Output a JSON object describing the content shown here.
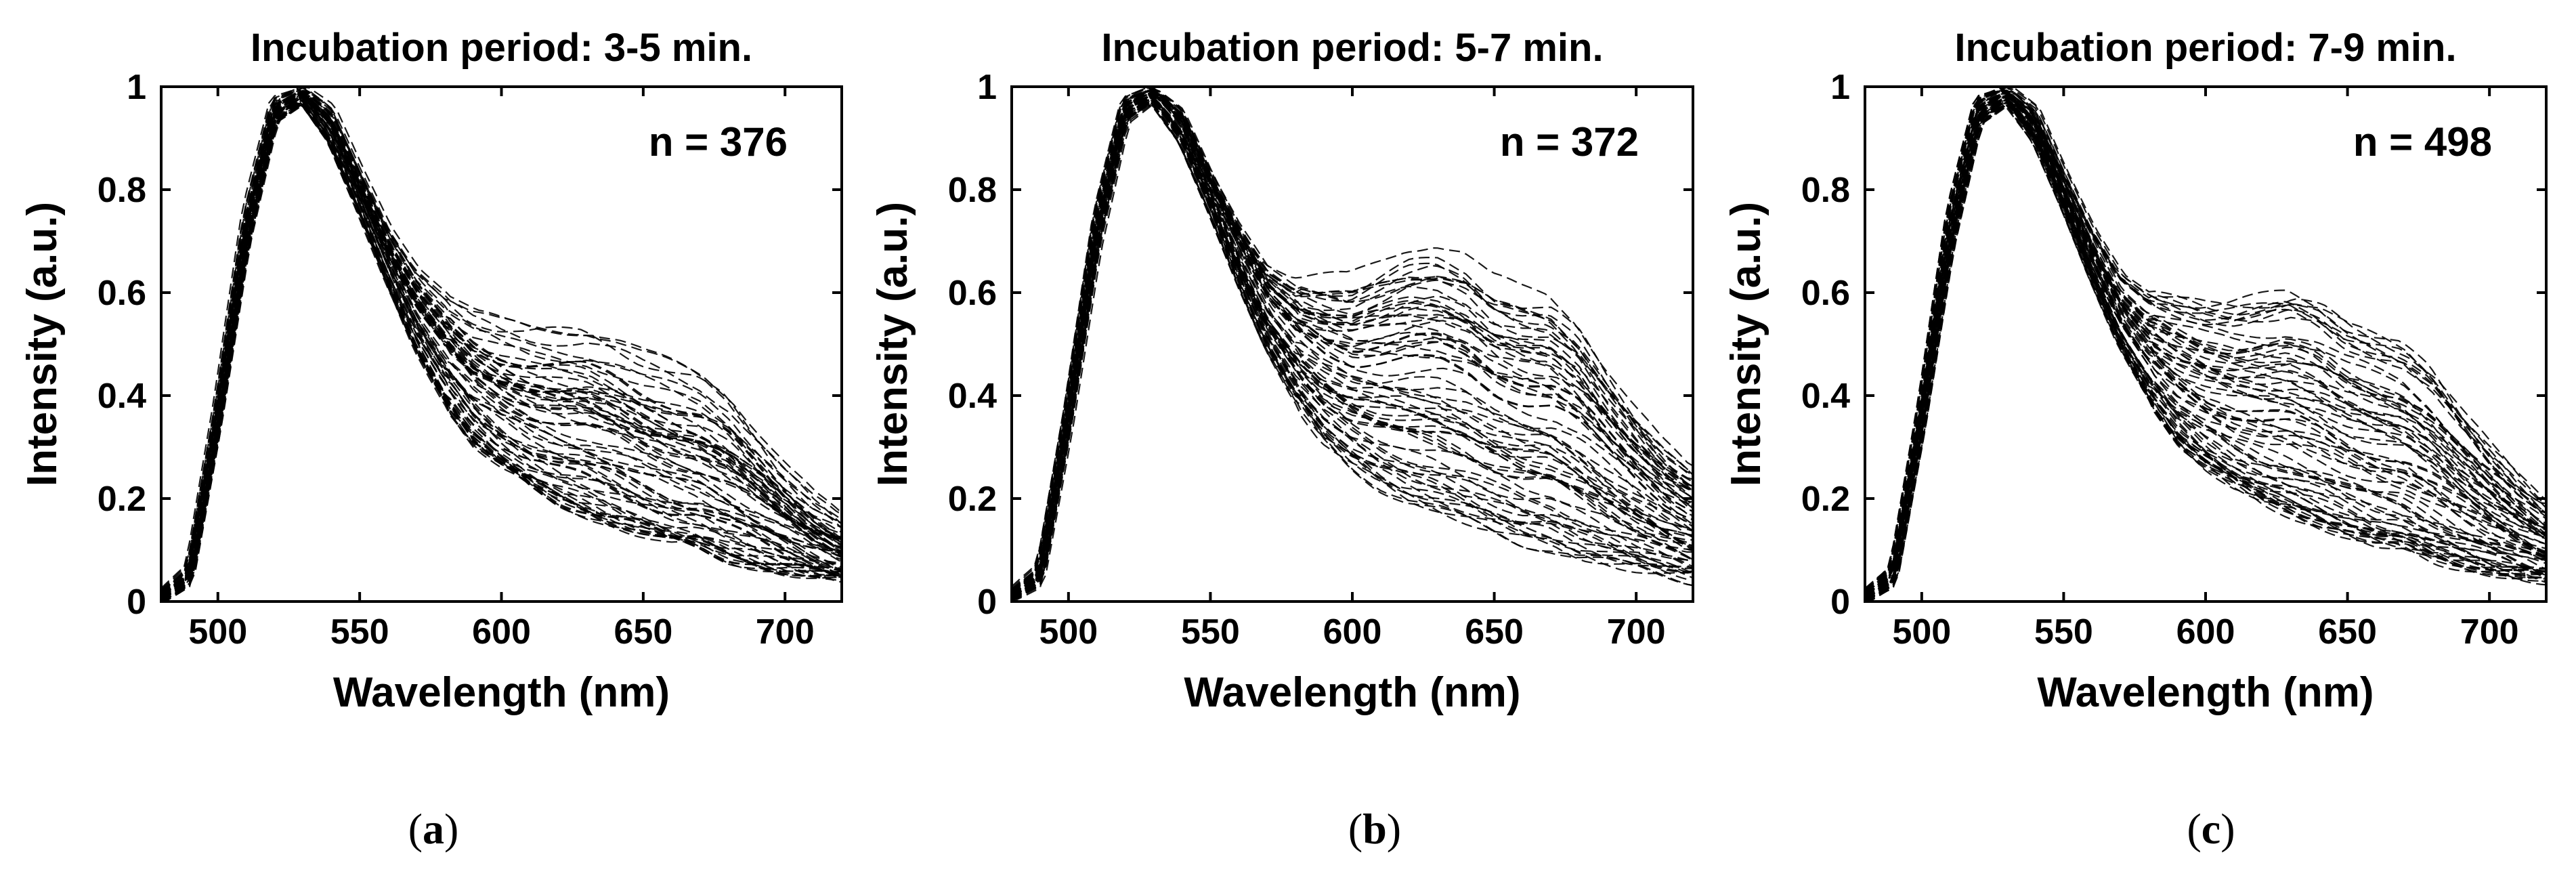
{
  "figure": {
    "panels": [
      {
        "title": "Incubation period: 3-5 min.",
        "count_label": "n = 376",
        "sub_open": "(",
        "sub_letter": "a",
        "sub_close": ")"
      },
      {
        "title": "Incubation period: 5-7 min.",
        "count_label": "n = 372",
        "sub_open": "(",
        "sub_letter": "b",
        "sub_close": ")"
      },
      {
        "title": "Incubation period: 7-9 min.",
        "count_label": "n = 498",
        "sub_open": "(",
        "sub_letter": "c",
        "sub_close": ")"
      }
    ]
  },
  "chart_data": [
    {
      "type": "line",
      "title": "Incubation period: 3-5 min.",
      "annotation": "n = 376",
      "xlabel": "Wavelength (nm)",
      "ylabel": "Intensity (a.u.)",
      "xlim": [
        480,
        720
      ],
      "ylim": [
        0,
        1
      ],
      "xticks": [
        500,
        550,
        600,
        650,
        700
      ],
      "yticks": [
        0,
        0.2,
        0.4,
        0.6,
        0.8,
        1
      ],
      "ytick_labels": [
        "0",
        "0.2",
        "0.4",
        "0.6",
        "0.8",
        "1"
      ],
      "n_spectra": 376,
      "peak_wavelength": 530,
      "series_summary": {
        "x": [
          480,
          490,
          500,
          510,
          520,
          530,
          540,
          550,
          560,
          570,
          580,
          590,
          600,
          610,
          620,
          630,
          640,
          650,
          660,
          670,
          680,
          690,
          700,
          710,
          720
        ],
        "min": [
          0.0,
          0.03,
          0.33,
          0.68,
          0.93,
          0.97,
          0.89,
          0.76,
          0.62,
          0.49,
          0.39,
          0.31,
          0.26,
          0.22,
          0.19,
          0.17,
          0.15,
          0.13,
          0.11,
          0.1,
          0.08,
          0.07,
          0.06,
          0.05,
          0.04
        ],
        "median": [
          0.01,
          0.05,
          0.36,
          0.72,
          0.96,
          1.0,
          0.93,
          0.8,
          0.68,
          0.58,
          0.5,
          0.44,
          0.4,
          0.37,
          0.35,
          0.34,
          0.33,
          0.31,
          0.28,
          0.25,
          0.21,
          0.17,
          0.14,
          0.11,
          0.09
        ],
        "max": [
          0.02,
          0.07,
          0.39,
          0.76,
          0.98,
          1.0,
          0.96,
          0.84,
          0.73,
          0.65,
          0.6,
          0.56,
          0.54,
          0.53,
          0.53,
          0.53,
          0.51,
          0.48,
          0.46,
          0.44,
          0.4,
          0.33,
          0.26,
          0.2,
          0.16
        ]
      }
    },
    {
      "type": "line",
      "title": "Incubation period: 5-7 min.",
      "annotation": "n = 372",
      "xlabel": "Wavelength (nm)",
      "ylabel": "Intensity (a.u.)",
      "xlim": [
        480,
        720
      ],
      "ylim": [
        0,
        1
      ],
      "xticks": [
        500,
        550,
        600,
        650,
        700
      ],
      "yticks": [
        0,
        0.2,
        0.4,
        0.6,
        0.8,
        1
      ],
      "ytick_labels": [
        "0",
        "0.2",
        "0.4",
        "0.6",
        "0.8",
        "1"
      ],
      "n_spectra": 372,
      "peak_wavelength": 530,
      "series_summary": {
        "x": [
          480,
          490,
          500,
          510,
          520,
          530,
          540,
          550,
          560,
          570,
          580,
          590,
          600,
          610,
          620,
          630,
          640,
          650,
          660,
          670,
          680,
          690,
          700,
          710,
          720
        ],
        "min": [
          0.0,
          0.03,
          0.33,
          0.68,
          0.93,
          0.97,
          0.89,
          0.76,
          0.62,
          0.49,
          0.39,
          0.31,
          0.26,
          0.22,
          0.19,
          0.17,
          0.15,
          0.13,
          0.11,
          0.1,
          0.08,
          0.07,
          0.06,
          0.05,
          0.04
        ],
        "median": [
          0.01,
          0.05,
          0.36,
          0.72,
          0.96,
          1.0,
          0.93,
          0.8,
          0.68,
          0.58,
          0.5,
          0.44,
          0.4,
          0.37,
          0.35,
          0.34,
          0.33,
          0.31,
          0.28,
          0.25,
          0.21,
          0.17,
          0.14,
          0.11,
          0.09
        ],
        "max": [
          0.02,
          0.07,
          0.39,
          0.76,
          0.98,
          1.0,
          0.96,
          0.84,
          0.74,
          0.66,
          0.63,
          0.63,
          0.63,
          0.66,
          0.69,
          0.7,
          0.68,
          0.63,
          0.61,
          0.6,
          0.55,
          0.46,
          0.38,
          0.31,
          0.26
        ]
      }
    },
    {
      "type": "line",
      "title": "Incubation period: 7-9 min.",
      "annotation": "n = 498",
      "xlabel": "Wavelength (nm)",
      "ylabel": "Intensity (a.u.)",
      "xlim": [
        480,
        720
      ],
      "ylim": [
        0,
        1
      ],
      "xticks": [
        500,
        550,
        600,
        650,
        700
      ],
      "yticks": [
        0,
        0.2,
        0.4,
        0.6,
        0.8,
        1
      ],
      "ytick_labels": [
        "0",
        "0.2",
        "0.4",
        "0.6",
        "0.8",
        "1"
      ],
      "n_spectra": 498,
      "peak_wavelength": 530,
      "series_summary": {
        "x": [
          480,
          490,
          500,
          510,
          520,
          530,
          540,
          550,
          560,
          570,
          580,
          590,
          600,
          610,
          620,
          630,
          640,
          650,
          660,
          670,
          680,
          690,
          700,
          710,
          720
        ],
        "min": [
          0.0,
          0.03,
          0.33,
          0.68,
          0.93,
          0.97,
          0.89,
          0.76,
          0.62,
          0.49,
          0.39,
          0.31,
          0.26,
          0.22,
          0.19,
          0.17,
          0.15,
          0.13,
          0.11,
          0.1,
          0.08,
          0.07,
          0.06,
          0.05,
          0.04
        ],
        "median": [
          0.01,
          0.05,
          0.36,
          0.72,
          0.96,
          1.0,
          0.93,
          0.8,
          0.68,
          0.58,
          0.5,
          0.44,
          0.4,
          0.37,
          0.35,
          0.34,
          0.33,
          0.31,
          0.28,
          0.25,
          0.21,
          0.17,
          0.14,
          0.11,
          0.09
        ],
        "max": [
          0.02,
          0.07,
          0.39,
          0.76,
          0.98,
          1.0,
          0.96,
          0.84,
          0.73,
          0.64,
          0.6,
          0.59,
          0.58,
          0.58,
          0.59,
          0.6,
          0.58,
          0.54,
          0.52,
          0.5,
          0.45,
          0.37,
          0.3,
          0.24,
          0.19
        ]
      }
    }
  ]
}
